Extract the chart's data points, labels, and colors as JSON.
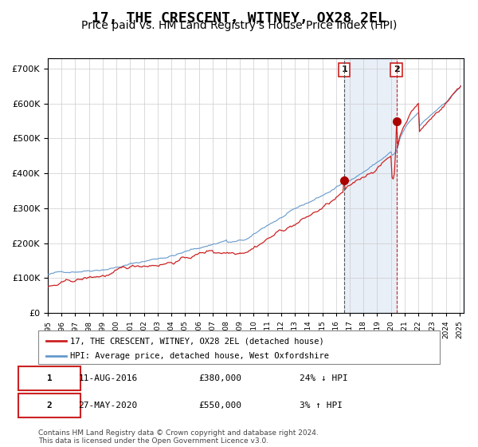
{
  "title": "17, THE CRESCENT, WITNEY, OX28 2EL",
  "subtitle": "Price paid vs. HM Land Registry's House Price Index (HPI)",
  "title_fontsize": 13,
  "subtitle_fontsize": 10,
  "ylabel_hpi": "HPI: Average price, detached house, West Oxfordshire",
  "ylabel_prop": "17, THE CRESCENT, WITNEY, OX28 2EL (detached house)",
  "hpi_color": "#6699cc",
  "prop_color": "#cc2222",
  "marker_color": "#aa0000",
  "bg_color": "#ddeeff",
  "plot_bg": "#ffffff",
  "grid_color": "#cccccc",
  "annotation1_date": "11-AUG-2016",
  "annotation1_price": "£380,000",
  "annotation1_hpi": "24% ↓ HPI",
  "annotation1_year": 2016.6,
  "annotation1_value": 380000,
  "annotation2_date": "27-MAY-2020",
  "annotation2_price": "£550,000",
  "annotation2_hpi": "3% ↑ HPI",
  "annotation2_year": 2020.4,
  "annotation2_value": 550000,
  "start_year": 1995,
  "end_year": 2025,
  "ylim_min": 0,
  "ylim_max": 730000,
  "footer": "Contains HM Land Registry data © Crown copyright and database right 2024.\nThis data is licensed under the Open Government Licence v3.0.",
  "legend1": "17, THE CRESCENT, WITNEY, OX28 2EL (detached house)",
  "legend2": "HPI: Average price, detached house, West Oxfordshire"
}
